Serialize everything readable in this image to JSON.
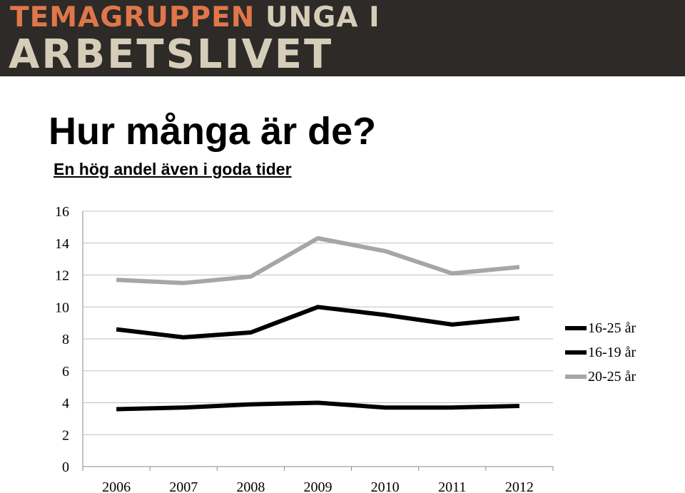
{
  "header": {
    "logo_line1_a": "TEMAGRUPPEN",
    "logo_line1_b": "UNGA I",
    "logo_line2": "ARBETSLIVET"
  },
  "slide": {
    "title": "Hur många är de?",
    "subtitle": "En hög andel även i goda tider"
  },
  "chart_data": {
    "type": "line",
    "title": "",
    "xlabel": "",
    "ylabel": "",
    "x": [
      "2006",
      "2007",
      "2008",
      "2009",
      "2010",
      "2011",
      "2012"
    ],
    "ylim": [
      0,
      16
    ],
    "yticks": [
      0,
      2,
      4,
      6,
      8,
      10,
      12,
      14,
      16
    ],
    "grid": true,
    "legend_position": "right",
    "series": [
      {
        "name": "16-25 år",
        "color": "#000000",
        "values": [
          8.6,
          8.1,
          8.4,
          10.0,
          9.5,
          8.9,
          9.3
        ]
      },
      {
        "name": "16-19 år",
        "color": "#000000",
        "values": [
          3.6,
          3.7,
          3.9,
          4.0,
          3.7,
          3.7,
          3.8
        ]
      },
      {
        "name": "20-25 år",
        "color": "#a6a6a6",
        "values": [
          11.7,
          11.5,
          11.9,
          14.3,
          13.5,
          12.1,
          12.5
        ]
      }
    ]
  }
}
